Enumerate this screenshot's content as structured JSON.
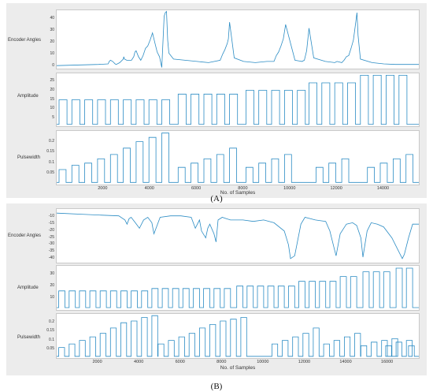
{
  "line_color": "#2b8cc4",
  "chart_data": [
    {
      "id": "A",
      "type": "line",
      "panel_label": "(A)",
      "xlabel": "No. of Samples",
      "xlim": [
        0,
        15500
      ],
      "xticks": [
        2000,
        4000,
        6000,
        8000,
        10000,
        12000,
        14000
      ],
      "subplots": [
        {
          "ylabel": "Encoder Angles",
          "yticks": [
            0,
            10,
            20,
            30,
            40
          ],
          "ylim": [
            -2,
            47
          ],
          "x": [
            0,
            1800,
            2200,
            2250,
            2300,
            2400,
            2500,
            2550,
            2700,
            2850,
            2870,
            2900,
            3000,
            3200,
            3300,
            3350,
            3400,
            3500,
            3600,
            3700,
            3800,
            3900,
            4000,
            4050,
            4100,
            4200,
            4300,
            4400,
            4500,
            4600,
            4650,
            4700,
            4750,
            4800,
            5000,
            5500,
            6000,
            6500,
            7000,
            7100,
            7200,
            7300,
            7350,
            7400,
            7600,
            8000,
            8500,
            9000,
            9300,
            9400,
            9500,
            9600,
            9700,
            9800,
            10200,
            10500,
            10600,
            10700,
            10800,
            11000,
            11500,
            11900,
            12000,
            12200,
            12300,
            12400,
            12500,
            12600,
            12700,
            12800,
            12850,
            12900,
            13000,
            13500,
            14000,
            14500,
            15000,
            15500
          ],
          "y": [
            0.5,
            1.5,
            2,
            4,
            5,
            4,
            2,
            1.5,
            3,
            6,
            8,
            6,
            5,
            5,
            8,
            12,
            13,
            8,
            5,
            9,
            15,
            17,
            22,
            25,
            28,
            20,
            12,
            8,
            -1,
            42,
            45,
            46,
            22,
            11,
            6,
            5,
            4,
            3,
            5,
            10,
            14,
            19,
            23,
            37,
            7,
            4,
            3,
            4,
            4,
            9,
            12,
            17,
            23,
            35,
            5,
            4,
            5,
            13,
            32,
            7,
            4,
            3,
            4,
            3,
            5,
            8,
            9,
            15,
            22,
            37,
            45,
            26,
            6,
            3,
            2,
            1.5,
            1.5,
            1.5
          ]
        },
        {
          "ylabel": "Amplitude",
          "yticks": [
            5,
            10,
            15,
            20,
            25
          ],
          "ylim": [
            1,
            29
          ],
          "type": "pulse",
          "baseline": 2,
          "pulse_period": 550,
          "pulse_width": 340,
          "pulse_start": 100,
          "segments": [
            {
              "start": 100,
              "end": 5200,
              "value": 15
            },
            {
              "start": 5200,
              "end": 8100,
              "value": 18
            },
            {
              "start": 8100,
              "end": 10800,
              "value": 20
            },
            {
              "start": 10800,
              "end": 13000,
              "value": 24
            },
            {
              "start": 13000,
              "end": 15500,
              "value": 28
            }
          ]
        },
        {
          "ylabel": "Pulsewidth",
          "yticks": [
            0.05,
            0.1,
            0.15,
            0.2
          ],
          "ylim": [
            0.0,
            0.25
          ],
          "type": "pulse",
          "baseline": 0.01,
          "pulse_period": 550,
          "pulse_width": 300,
          "pulse_start": 100,
          "values_per_group": [
            [
              0.07,
              0.09,
              0.1,
              0.12,
              0.14,
              0.17,
              0.2,
              0.22,
              0.24
            ],
            [
              0.08,
              0.1,
              0.12,
              0.14,
              0.17
            ],
            [
              0.08,
              0.1,
              0.12,
              0.14
            ],
            [
              0.08,
              0.1,
              0.12
            ],
            [
              0.08,
              0.1,
              0.12,
              0.14
            ]
          ],
          "group_starts": [
            100,
            5200,
            8100,
            11100,
            13300
          ]
        }
      ]
    },
    {
      "id": "B",
      "type": "line",
      "panel_label": "(B)",
      "xlabel": "No. of Samples",
      "xlim": [
        0,
        17500
      ],
      "xticks": [
        2000,
        4000,
        6000,
        8000,
        10000,
        12000,
        14000,
        16000
      ],
      "subplots": [
        {
          "ylabel": "Encoder Angles",
          "yticks": [
            -10,
            -15,
            -20,
            -25,
            -30,
            -35,
            -40
          ],
          "ylim": [
            -43,
            -4
          ],
          "x": [
            0,
            1500,
            3000,
            3300,
            3400,
            3500,
            3600,
            3800,
            4000,
            4200,
            4400,
            4600,
            4700,
            4800,
            5000,
            5500,
            6000,
            6500,
            6700,
            6800,
            6900,
            7000,
            7200,
            7300,
            7400,
            7600,
            7700,
            7800,
            8000,
            8200,
            8400,
            9000,
            9500,
            10000,
            10500,
            11000,
            11200,
            11300,
            11500,
            11800,
            12000,
            12500,
            13000,
            13200,
            13400,
            13500,
            13700,
            14000,
            14300,
            14500,
            14700,
            14800,
            15000,
            15200,
            15500,
            15800,
            16200,
            16500,
            16700,
            16800,
            17000,
            17200,
            17500
          ],
          "y": [
            -7,
            -8,
            -9,
            -12,
            -15,
            -11,
            -10,
            -14,
            -18,
            -12,
            -10,
            -14,
            -22,
            -18,
            -10,
            -9,
            -9,
            -10,
            -18,
            -15,
            -12,
            -20,
            -25,
            -18,
            -15,
            -22,
            -28,
            -12,
            -10,
            -11,
            -12,
            -12,
            -13,
            -12,
            -14,
            -20,
            -30,
            -40,
            -38,
            -15,
            -10,
            -12,
            -13,
            -20,
            -32,
            -38,
            -22,
            -15,
            -14,
            -16,
            -25,
            -39,
            -20,
            -14,
            -15,
            -17,
            -25,
            -34,
            -40,
            -37,
            -25,
            -15,
            -15
          ]
        },
        {
          "ylabel": "Amplitude",
          "yticks": [
            10,
            20,
            30
          ],
          "ylim": [
            0,
            37
          ],
          "type": "pulse",
          "baseline": 2,
          "pulse_period": 500,
          "pulse_width": 300,
          "pulse_start": 100,
          "segments": [
            {
              "start": 100,
              "end": 4600,
              "value": 16
            },
            {
              "start": 4600,
              "end": 8700,
              "value": 18
            },
            {
              "start": 8700,
              "end": 11700,
              "value": 20
            },
            {
              "start": 11700,
              "end": 13700,
              "value": 24
            },
            {
              "start": 13700,
              "end": 14800,
              "value": 28
            },
            {
              "start": 14800,
              "end": 16400,
              "value": 32
            },
            {
              "start": 16400,
              "end": 17500,
              "value": 35
            }
          ]
        },
        {
          "ylabel": "Pulsewidth",
          "yticks": [
            0.05,
            0.1,
            0.15,
            0.2
          ],
          "ylim": [
            0.0,
            0.25
          ],
          "type": "pulse",
          "baseline": 0.01,
          "pulse_period": 500,
          "pulse_width": 280,
          "pulse_start": 100,
          "values_per_group": [
            [
              0.06,
              0.08,
              0.1,
              0.12,
              0.14,
              0.17,
              0.2,
              0.21,
              0.23,
              0.24
            ],
            [
              0.08,
              0.1,
              0.12,
              0.14,
              0.17,
              0.19,
              0.21,
              0.22,
              0.23
            ],
            [
              0.08,
              0.1,
              0.12,
              0.14,
              0.17
            ],
            [
              0.08,
              0.1,
              0.12,
              0.14
            ],
            [
              0.07,
              0.09,
              0.1,
              0.11
            ],
            [
              0.07,
              0.09,
              0.1
            ],
            [
              0.07
            ]
          ],
          "group_starts": [
            100,
            4900,
            10400,
            12900,
            14700,
            15900,
            17000
          ]
        }
      ]
    }
  ]
}
